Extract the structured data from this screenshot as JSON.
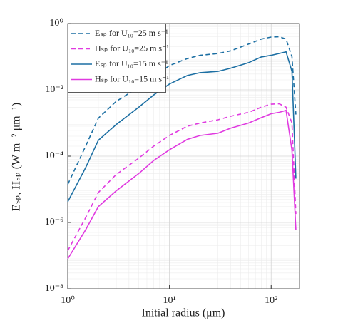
{
  "chart_data": {
    "type": "line",
    "xlabel": "Initial radius (μm)",
    "ylabel": "Eₛₚ, Hₛₚ (W m⁻² μm⁻¹)",
    "x": [
      1,
      1.5,
      2,
      3,
      5,
      7,
      10,
      15,
      20,
      30,
      40,
      60,
      80,
      100,
      120,
      140,
      160,
      175
    ],
    "series": [
      {
        "name": "Eₛₚ for U₁₀=25 m s⁻¹",
        "color": "#1c6fa3",
        "style": "dashed",
        "values": [
          1.4e-05,
          0.0002,
          0.0014,
          0.0045,
          0.012,
          0.024,
          0.054,
          0.088,
          0.11,
          0.125,
          0.15,
          0.24,
          0.34,
          0.39,
          0.4,
          0.34,
          0.1,
          0.0018
        ]
      },
      {
        "name": "Hₛₚ for U₁₀=25 m s⁻¹",
        "color": "#e03ae0",
        "style": "dashed",
        "values": [
          1.4e-07,
          1.4e-06,
          8e-06,
          2.8e-05,
          8.7e-05,
          0.0002,
          0.00042,
          0.0008,
          0.001,
          0.00125,
          0.0016,
          0.0021,
          0.003,
          0.0037,
          0.0038,
          0.003,
          0.001,
          1.8e-06
        ]
      },
      {
        "name": "Eₛₚ for U₁₀=15 m s⁻¹",
        "color": "#1c6fa3",
        "style": "solid",
        "values": [
          4.2e-06,
          4.5e-05,
          0.0003,
          0.0009,
          0.003,
          0.007,
          0.015,
          0.027,
          0.033,
          0.036,
          0.045,
          0.066,
          0.098,
          0.11,
          0.125,
          0.14,
          0.036,
          2.1e-05
        ]
      },
      {
        "name": "Hₛₚ for U₁₀=15 m s⁻¹",
        "color": "#e03ae0",
        "style": "solid",
        "values": [
          8e-08,
          6e-07,
          3e-06,
          9e-06,
          3e-05,
          7.4e-05,
          0.000155,
          0.00032,
          0.00042,
          0.00049,
          0.0007,
          0.001,
          0.00145,
          0.0019,
          0.0021,
          0.0024,
          0.00015,
          6e-07
        ]
      }
    ],
    "xlim": [
      1,
      190
    ],
    "ylim": [
      1e-08,
      1
    ],
    "xticks": [
      {
        "value": 1,
        "label": "10⁰"
      },
      {
        "value": 10,
        "label": "10¹"
      },
      {
        "value": 100,
        "label": "10²"
      }
    ],
    "yticks": [
      {
        "value": 1e-08,
        "label": "10⁻⁸"
      },
      {
        "value": 1e-06,
        "label": "10⁻⁶"
      },
      {
        "value": 0.0001,
        "label": "10⁻⁴"
      },
      {
        "value": 0.01,
        "label": "10⁻²"
      },
      {
        "value": 1,
        "label": "10⁰"
      }
    ],
    "xscale": "log",
    "yscale": "log",
    "grid": true,
    "minor_grid": true,
    "legend": "upper-left"
  }
}
